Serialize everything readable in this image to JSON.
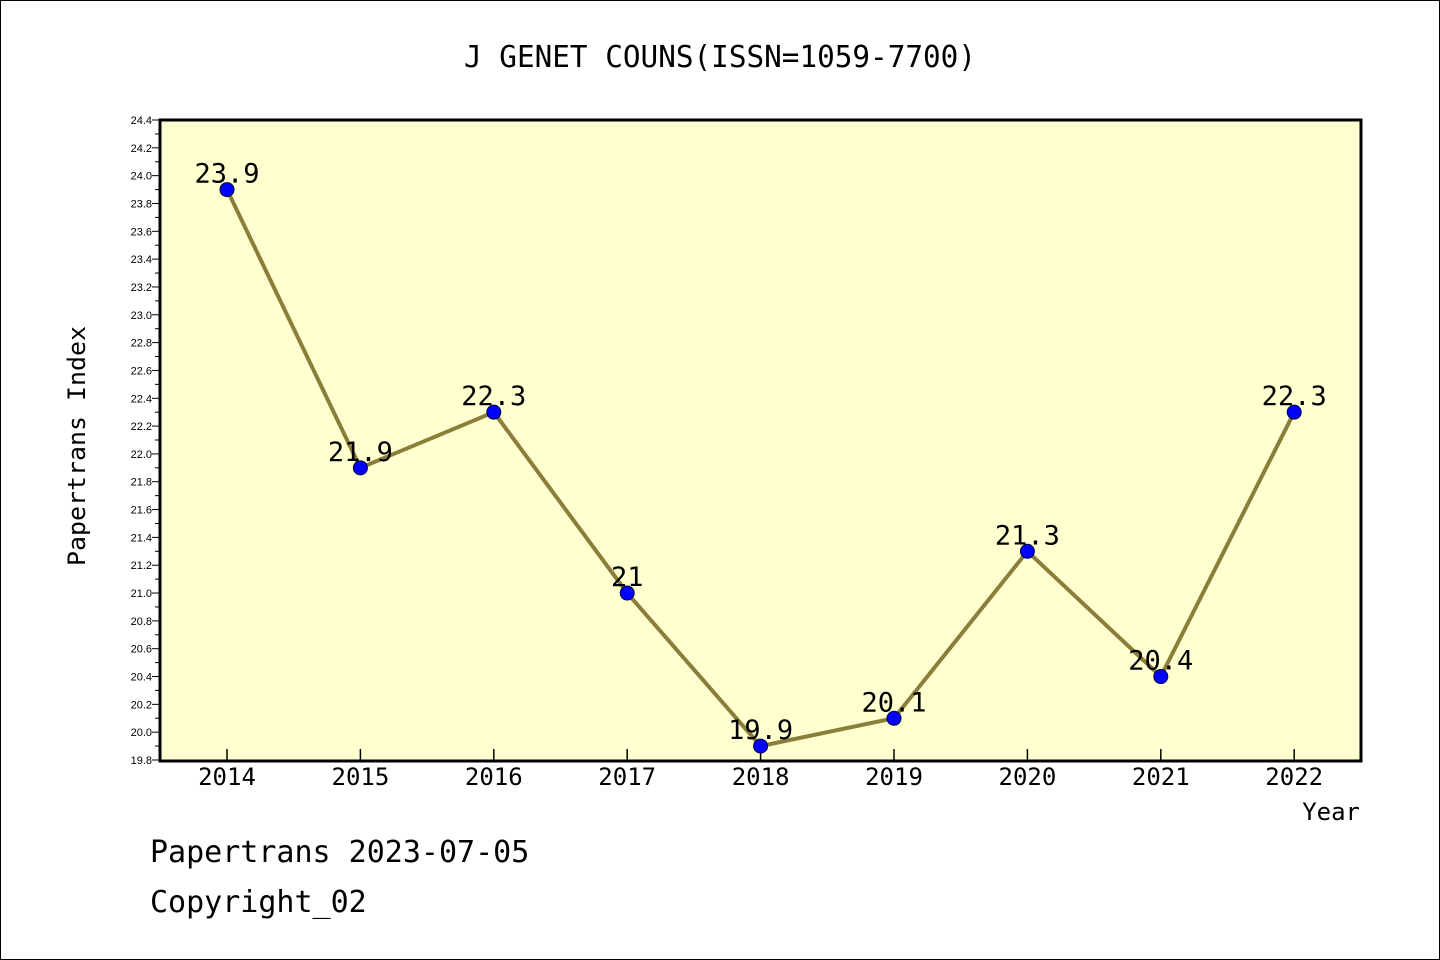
{
  "chart_data": {
    "type": "line",
    "title": "J GENET COUNS(ISSN=1059-7700)",
    "xlabel": "Year",
    "ylabel": "Papertrans Index",
    "categories": [
      "2014",
      "2015",
      "2016",
      "2017",
      "2018",
      "2019",
      "2020",
      "2021",
      "2022"
    ],
    "series": [
      {
        "values": [
          23.9,
          21.9,
          22.3,
          21.0,
          19.9,
          20.1,
          21.3,
          20.4,
          22.3
        ],
        "labels": [
          "23.9",
          "21.9",
          "22.3",
          "21",
          "19.9",
          "20.1",
          "21.3",
          "20.4",
          "22.3"
        ]
      }
    ],
    "ylim": [
      19.8,
      24.4
    ],
    "yticks": [
      "19.8",
      "20.0",
      "20.2",
      "20.4",
      "20.6",
      "20.8",
      "21.0",
      "21.2",
      "21.4",
      "21.6",
      "21.8",
      "22.0",
      "22.2",
      "22.4",
      "22.6",
      "22.8",
      "23.0",
      "23.2",
      "23.4",
      "23.6",
      "23.8",
      "24.0",
      "24.2",
      "24.4"
    ],
    "grid": false,
    "colors": {
      "plot_background": "#ffffd0",
      "line": "#8b7d3a",
      "marker": "#0000ff",
      "axis": "#000000"
    }
  },
  "footer": {
    "line1": "Papertrans 2023-07-05",
    "line2": "Copyright_02"
  }
}
